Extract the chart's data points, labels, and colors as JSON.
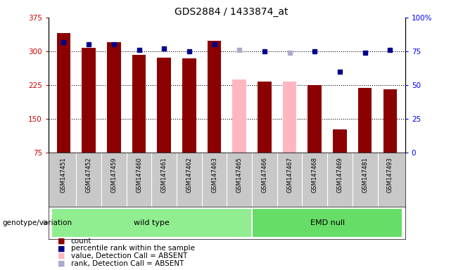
{
  "title": "GDS2884 / 1433874_at",
  "samples": [
    "GSM147451",
    "GSM147452",
    "GSM147459",
    "GSM147460",
    "GSM147461",
    "GSM147462",
    "GSM147463",
    "GSM147465",
    "GSM147466",
    "GSM147467",
    "GSM147468",
    "GSM147469",
    "GSM147481",
    "GSM147493"
  ],
  "counts": [
    340,
    308,
    320,
    292,
    286,
    284,
    323,
    237,
    232,
    232,
    225,
    126,
    219,
    215
  ],
  "ranks": [
    82,
    80,
    80,
    76,
    77,
    75,
    80,
    76,
    75,
    74,
    75,
    60,
    74,
    76
  ],
  "absent": [
    false,
    false,
    false,
    false,
    false,
    false,
    false,
    true,
    false,
    true,
    false,
    false,
    false,
    false
  ],
  "ylim_left": [
    75,
    375
  ],
  "ylim_right": [
    0,
    100
  ],
  "yticks_left": [
    75,
    150,
    225,
    300,
    375
  ],
  "ytick_labels_left": [
    "75",
    "150",
    "225",
    "300",
    "375"
  ],
  "yticks_right": [
    0,
    25,
    50,
    75,
    100
  ],
  "ytick_labels_right": [
    "0",
    "25",
    "50",
    "75",
    "100%"
  ],
  "groups": [
    {
      "label": "wild type",
      "indices": [
        0,
        1,
        2,
        3,
        4,
        5,
        6,
        7
      ],
      "color": "#90EE90"
    },
    {
      "label": "EMD null",
      "indices": [
        8,
        9,
        10,
        11,
        12,
        13
      ],
      "color": "#66DD66"
    }
  ],
  "bar_color_normal": "#8B0000",
  "bar_color_absent": "#FFB6C1",
  "rank_color_normal": "#00008B",
  "rank_color_absent": "#AAAACC",
  "bar_width": 0.55,
  "bg_color": "#FFFFFF",
  "plot_bg": "#FFFFFF",
  "xlabels_bg": "#C8C8C8",
  "legend_items": [
    {
      "label": "count",
      "color": "#8B0000"
    },
    {
      "label": "percentile rank within the sample",
      "color": "#00008B"
    },
    {
      "label": "value, Detection Call = ABSENT",
      "color": "#FFB6C1"
    },
    {
      "label": "rank, Detection Call = ABSENT",
      "color": "#AAAACC"
    }
  ],
  "genotype_label": "genotype/variation"
}
